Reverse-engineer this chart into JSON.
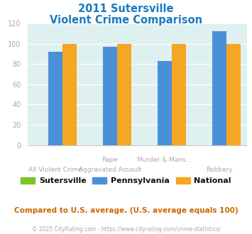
{
  "title_line1": "2011 Sutersville",
  "title_line2": "Violent Crime Comparison",
  "groups": [
    {
      "top": "",
      "bottom": "All Violent Crime",
      "sutersville": 0,
      "pennsylvania": 92,
      "national": 100
    },
    {
      "top": "Rape",
      "bottom": "Aggravated Assault",
      "sutersville": 0,
      "pennsylvania": 97,
      "national": 100
    },
    {
      "top": "Murder & Mans...",
      "bottom": "",
      "sutersville": 0,
      "pennsylvania": 83,
      "national": 100
    },
    {
      "top": "",
      "bottom": "Robbery",
      "sutersville": 0,
      "pennsylvania": 112,
      "national": 100
    }
  ],
  "colors": {
    "sutersville": "#7dc42a",
    "pennsylvania": "#4a90d9",
    "national": "#f5a623"
  },
  "ylim": [
    0,
    120
  ],
  "yticks": [
    0,
    20,
    40,
    60,
    80,
    100,
    120
  ],
  "background_color": "#dff0f0",
  "title_color": "#1a7abf",
  "axis_label_color": "#aaaaaa",
  "legend_label_color": "#111111",
  "footer_text": "Compared to U.S. average. (U.S. average equals 100)",
  "copyright_text": "© 2025 CityRating.com - https://www.cityrating.com/crime-statistics/",
  "footer_color": "#cc6600",
  "copyright_color": "#aaaaaa"
}
